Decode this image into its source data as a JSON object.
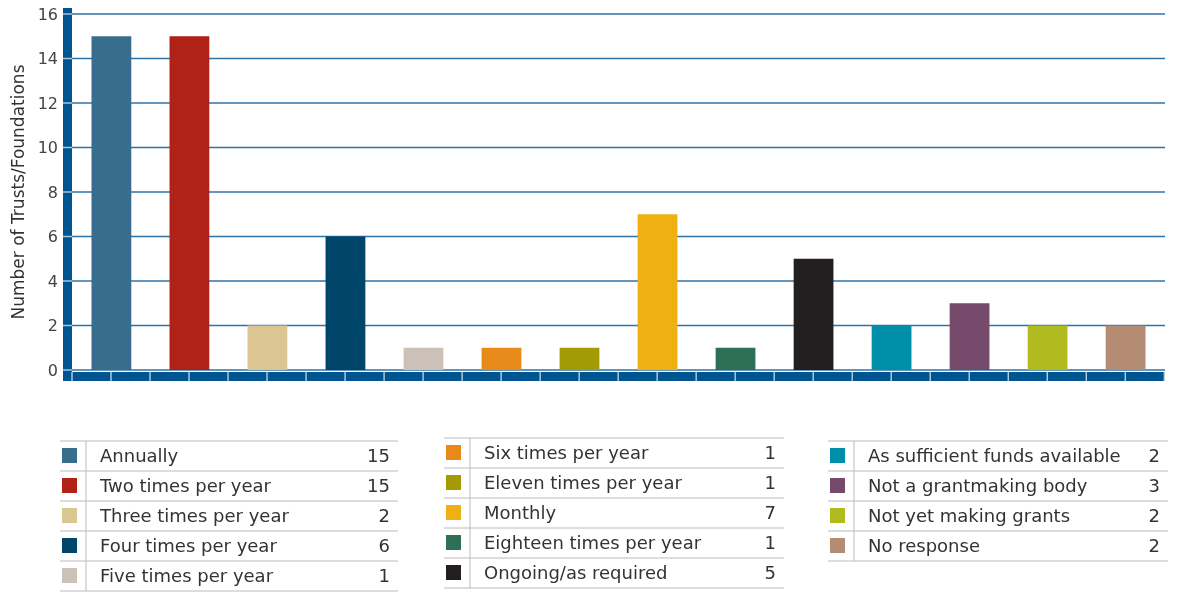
{
  "chart_data": {
    "type": "bar",
    "ylabel": "Number of Trusts/Foundations",
    "categories": [
      null,
      null,
      null,
      null,
      null,
      null,
      null,
      null,
      null,
      null,
      null,
      null,
      null,
      null
    ],
    "series": [
      {
        "name": "Annually",
        "color": "#386d8e",
        "values": [
          15,
          null,
          null,
          null,
          null,
          null,
          null,
          null,
          null,
          null,
          null,
          null,
          null,
          null
        ]
      },
      {
        "name": "Two times per year",
        "color": "#b02118",
        "values": [
          null,
          15,
          null,
          null,
          null,
          null,
          null,
          null,
          null,
          null,
          null,
          null,
          null,
          null
        ]
      },
      {
        "name": "Three times per year",
        "color": "#dbc693",
        "values": [
          null,
          null,
          2,
          null,
          null,
          null,
          null,
          null,
          null,
          null,
          null,
          null,
          null,
          null
        ]
      },
      {
        "name": "Four times per year",
        "color": "#00466b",
        "values": [
          null,
          null,
          null,
          6,
          null,
          null,
          null,
          null,
          null,
          null,
          null,
          null,
          null,
          null
        ]
      },
      {
        "name": "Five times per year",
        "color": "#cbc1b6",
        "values": [
          null,
          null,
          null,
          null,
          1,
          null,
          null,
          null,
          null,
          null,
          null,
          null,
          null,
          null
        ]
      },
      {
        "name": "Six times per year",
        "color": "#e88a1a",
        "values": [
          null,
          null,
          null,
          null,
          null,
          1,
          null,
          null,
          null,
          null,
          null,
          null,
          null,
          null
        ]
      },
      {
        "name": "Eleven times per year",
        "color": "#a39a05",
        "values": [
          null,
          null,
          null,
          null,
          null,
          null,
          1,
          null,
          null,
          null,
          null,
          null,
          null,
          null
        ]
      },
      {
        "name": "Monthly",
        "color": "#eeb111",
        "values": [
          null,
          null,
          null,
          null,
          null,
          null,
          null,
          7,
          null,
          null,
          null,
          null,
          null,
          null
        ]
      },
      {
        "name": "Eighteen times per year",
        "color": "#2d7056",
        "values": [
          null,
          null,
          null,
          null,
          null,
          null,
          null,
          null,
          1,
          null,
          null,
          null,
          null,
          null
        ]
      },
      {
        "name": "Ongoing/as required",
        "color": "#231f20",
        "values": [
          null,
          null,
          null,
          null,
          null,
          null,
          null,
          null,
          null,
          5,
          null,
          null,
          null,
          null
        ]
      },
      {
        "name": "As sufficient funds available",
        "color": "#008fa8",
        "values": [
          null,
          null,
          null,
          null,
          null,
          null,
          null,
          null,
          null,
          null,
          2,
          null,
          null,
          null
        ]
      },
      {
        "name": "Not a grantmaking body",
        "color": "#764a6b",
        "values": [
          null,
          null,
          null,
          null,
          null,
          null,
          null,
          null,
          null,
          null,
          null,
          3,
          null,
          null
        ]
      },
      {
        "name": "Not yet making grants",
        "color": "#b1bb1f",
        "values": [
          null,
          null,
          null,
          null,
          null,
          null,
          null,
          null,
          null,
          null,
          null,
          null,
          2,
          null
        ]
      },
      {
        "name": "No response",
        "color": "#b48b73",
        "values": [
          null,
          null,
          null,
          null,
          null,
          null,
          null,
          null,
          null,
          null,
          null,
          null,
          null,
          2
        ]
      }
    ],
    "ylim": [
      0,
      16
    ],
    "yticks": [
      0,
      2,
      4,
      6,
      8,
      10,
      12,
      14,
      16
    ],
    "grid": "y",
    "tick_labels": "y",
    "legend": "bottom",
    "annotations": [
      "15",
      "15",
      "2",
      "6",
      "1",
      "1",
      "1",
      "7",
      "1",
      "5",
      "2",
      "3",
      "2",
      "2"
    ]
  }
}
